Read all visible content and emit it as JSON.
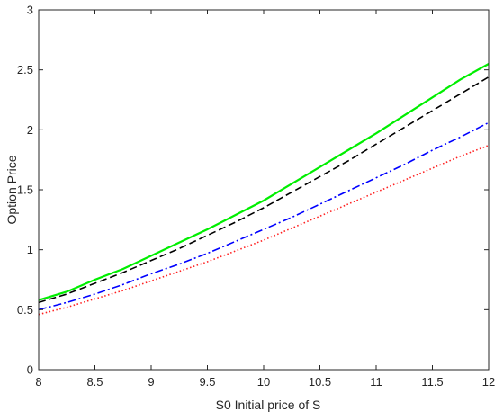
{
  "chart_data": {
    "type": "line",
    "title": "",
    "xlabel": "S0 Initial price of S",
    "ylabel": "Option Price",
    "xlim": [
      8,
      12
    ],
    "ylim": [
      0,
      3
    ],
    "xticks": [
      8,
      8.5,
      9,
      9.5,
      10,
      10.5,
      11,
      11.5,
      12
    ],
    "yticks": [
      0,
      0.5,
      1,
      1.5,
      2,
      2.5,
      3
    ],
    "xtick_labels": [
      "8",
      "8.5",
      "9",
      "9.5",
      "10",
      "10.5",
      "11",
      "11.5",
      "12"
    ],
    "ytick_labels": [
      "0",
      "0.5",
      "1",
      "1.5",
      "2",
      "2.5",
      "3"
    ],
    "grid": false,
    "legend": false,
    "x": [
      8,
      8.25,
      8.5,
      8.75,
      9,
      9.25,
      9.5,
      9.75,
      10,
      10.25,
      10.5,
      10.75,
      11,
      11.25,
      11.5,
      11.75,
      12
    ],
    "series": [
      {
        "color": "#00ee00",
        "line_style": "solid",
        "values": [
          0.58,
          0.65,
          0.75,
          0.84,
          0.95,
          1.06,
          1.17,
          1.29,
          1.41,
          1.55,
          1.69,
          1.83,
          1.97,
          2.12,
          2.27,
          2.42,
          2.55
        ]
      },
      {
        "color": "#000000",
        "line_style": "dashed",
        "values": [
          0.56,
          0.63,
          0.72,
          0.81,
          0.91,
          1.01,
          1.12,
          1.23,
          1.35,
          1.48,
          1.61,
          1.74,
          1.88,
          2.02,
          2.16,
          2.3,
          2.44
        ]
      },
      {
        "color": "#0000ff",
        "line_style": "dashdot",
        "values": [
          0.5,
          0.56,
          0.63,
          0.71,
          0.8,
          0.88,
          0.97,
          1.07,
          1.17,
          1.27,
          1.38,
          1.49,
          1.6,
          1.71,
          1.83,
          1.94,
          2.06
        ]
      },
      {
        "color": "#ff2020",
        "line_style": "dotted",
        "values": [
          0.46,
          0.52,
          0.59,
          0.66,
          0.74,
          0.82,
          0.9,
          0.99,
          1.08,
          1.18,
          1.28,
          1.38,
          1.48,
          1.58,
          1.68,
          1.78,
          1.87
        ]
      }
    ]
  }
}
